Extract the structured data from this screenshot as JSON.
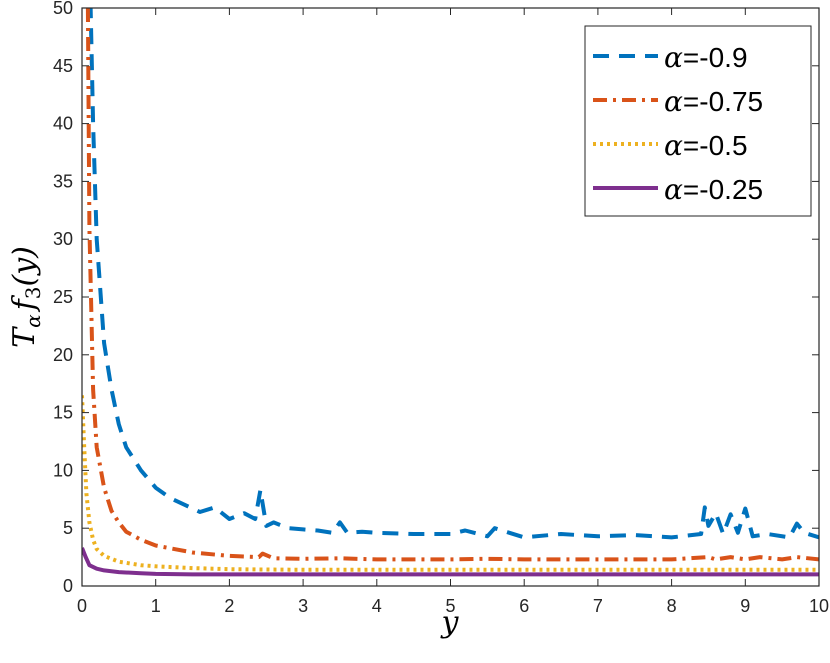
{
  "chart_data": {
    "type": "line",
    "xlabel": "y",
    "ylabel": "T_α f_3(y)",
    "ylabel_parts": {
      "main": "T",
      "sub1": "α",
      "func": "f",
      "sub2": "3",
      "arg": "(y)"
    },
    "xlim": [
      0,
      10
    ],
    "ylim": [
      0,
      50
    ],
    "xticks": [
      0,
      1,
      2,
      3,
      4,
      5,
      6,
      7,
      8,
      9,
      10
    ],
    "yticks": [
      0,
      5,
      10,
      15,
      20,
      25,
      30,
      35,
      40,
      45,
      50
    ],
    "grid": false,
    "legend_position": "top-right",
    "series": [
      {
        "name": "α=-0.9",
        "name_symbol": "α",
        "name_value": "=-0.9",
        "style": "dashed",
        "color": "#0072BD",
        "x": [
          0.1,
          0.15,
          0.2,
          0.3,
          0.4,
          0.5,
          0.6,
          0.7,
          0.8,
          1.0,
          1.2,
          1.4,
          1.6,
          1.8,
          2.0,
          2.2,
          2.35,
          2.42,
          2.5,
          2.6,
          2.8,
          3.0,
          3.2,
          3.4,
          3.5,
          3.6,
          3.8,
          4.0,
          4.5,
          5.0,
          5.2,
          5.5,
          5.6,
          6.0,
          6.5,
          7.0,
          7.5,
          8.0,
          8.4,
          8.45,
          8.5,
          8.6,
          8.7,
          8.8,
          8.9,
          9.0,
          9.1,
          9.3,
          9.6,
          9.7,
          9.8,
          10.0
        ],
        "values": [
          55,
          40,
          30,
          21,
          17,
          14,
          12,
          11,
          10,
          8.5,
          7.6,
          7.0,
          6.4,
          6.8,
          5.8,
          6.3,
          5.8,
          8.3,
          5.2,
          5.5,
          5.0,
          4.9,
          4.8,
          4.6,
          5.5,
          4.6,
          4.7,
          4.6,
          4.5,
          4.5,
          4.8,
          4.3,
          5.0,
          4.2,
          4.5,
          4.3,
          4.4,
          4.2,
          4.5,
          6.8,
          5.2,
          6.3,
          4.5,
          6.2,
          4.6,
          6.7,
          4.3,
          4.5,
          4.2,
          5.4,
          4.6,
          4.2
        ]
      },
      {
        "name": "α=-0.75",
        "name_symbol": "α",
        "name_value": "=-0.75",
        "style": "dashdot",
        "color": "#D95319",
        "x": [
          0.08,
          0.1,
          0.15,
          0.2,
          0.3,
          0.4,
          0.5,
          0.6,
          0.8,
          1.0,
          1.5,
          2.0,
          2.4,
          2.45,
          2.6,
          3.0,
          3.5,
          4.0,
          5.0,
          5.5,
          6.0,
          7.0,
          8.0,
          8.5,
          8.6,
          8.8,
          9.0,
          9.2,
          9.5,
          9.7,
          10.0
        ],
        "values": [
          50,
          31,
          17,
          12,
          8.5,
          6.5,
          5.5,
          4.7,
          4.0,
          3.5,
          2.9,
          2.6,
          2.5,
          2.8,
          2.4,
          2.35,
          2.4,
          2.3,
          2.3,
          2.35,
          2.3,
          2.3,
          2.3,
          2.5,
          2.3,
          2.5,
          2.3,
          2.5,
          2.3,
          2.5,
          2.3
        ]
      },
      {
        "name": "α=-0.5",
        "name_symbol": "α",
        "name_value": "=-0.5",
        "style": "dotted",
        "color": "#EDB120",
        "x": [
          0.0,
          0.03,
          0.06,
          0.1,
          0.15,
          0.2,
          0.3,
          0.5,
          0.8,
          1.0,
          1.5,
          2.0,
          3.0,
          4.0,
          5.0,
          6.0,
          7.0,
          8.0,
          9.0,
          10.0
        ],
        "values": [
          16.5,
          12,
          8,
          5.5,
          4.0,
          3.2,
          2.6,
          2.1,
          1.8,
          1.7,
          1.55,
          1.45,
          1.4,
          1.4,
          1.4,
          1.4,
          1.4,
          1.4,
          1.4,
          1.4
        ]
      },
      {
        "name": "α=-0.25",
        "name_symbol": "α",
        "name_value": "=-0.25",
        "style": "solid",
        "color": "#7E2F8E",
        "x": [
          0.0,
          0.05,
          0.1,
          0.2,
          0.3,
          0.5,
          0.8,
          1.0,
          1.5,
          2.0,
          3.0,
          4.0,
          5.0,
          6.0,
          7.0,
          8.0,
          9.0,
          10.0
        ],
        "values": [
          3.3,
          2.5,
          1.8,
          1.5,
          1.35,
          1.2,
          1.1,
          1.05,
          1.0,
          1.0,
          1.0,
          1.0,
          1.0,
          1.0,
          1.0,
          1.0,
          1.0,
          1.0
        ]
      }
    ]
  }
}
